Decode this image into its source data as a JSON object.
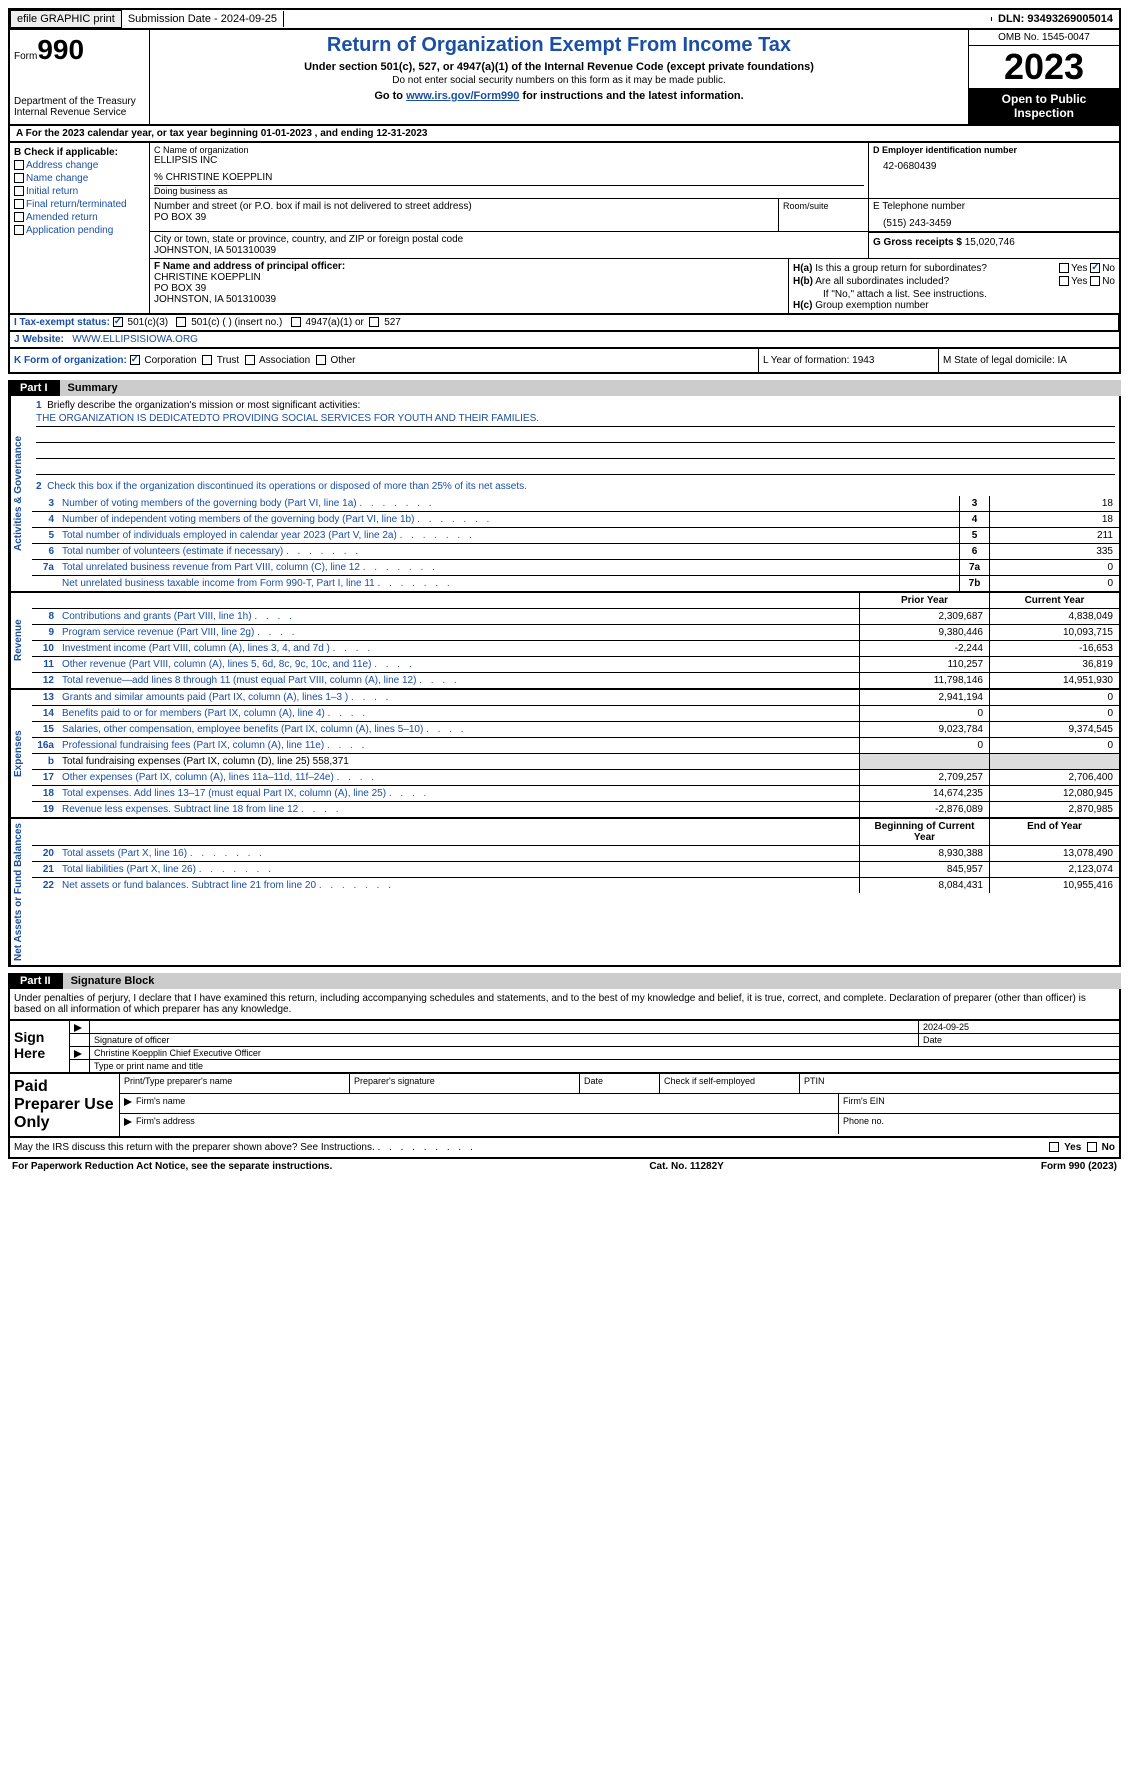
{
  "top": {
    "efile": "efile GRAPHIC print",
    "submission": "Submission Date - 2024-09-25",
    "dln": "DLN: 93493269005014"
  },
  "header": {
    "form": "Form",
    "formnum": "990",
    "dept": "Department of the Treasury Internal Revenue Service",
    "title": "Return of Organization Exempt From Income Tax",
    "subtitle": "Under section 501(c), 527, or 4947(a)(1) of the Internal Revenue Code (except private foundations)",
    "note1": "Do not enter social security numbers on this form as it may be made public.",
    "goto": "Go to www.irs.gov/Form990 for instructions and the latest information.",
    "goto_link": "www.irs.gov/Form990",
    "omb": "OMB No. 1545-0047",
    "year": "2023",
    "open": "Open to Public Inspection"
  },
  "lineA": "A For the 2023 calendar year, or tax year beginning 01-01-2023    , and ending 12-31-2023",
  "colB": {
    "label": "B Check if applicable:",
    "items": [
      "Address change",
      "Name change",
      "Initial return",
      "Final return/terminated",
      "Amended return",
      "Application pending"
    ]
  },
  "nameBlock": {
    "cLabel": "C Name of organization",
    "orgName": "ELLIPSIS INC",
    "careOf": "% CHRISTINE KOEPPLIN",
    "dbaLabel": "Doing business as",
    "addrLabel": "Number and street (or P.O. box if mail is not delivered to street address)",
    "addr": "PO BOX 39",
    "roomLabel": "Room/suite",
    "cityLabel": "City or town, state or province, country, and ZIP or foreign postal code",
    "city": "JOHNSTON, IA  501310039"
  },
  "d": {
    "label": "D Employer identification number",
    "val": "42-0680439"
  },
  "e": {
    "label": "E Telephone number",
    "val": "(515) 243-3459"
  },
  "g": {
    "label": "G Gross receipts $",
    "val": "15,020,746"
  },
  "f": {
    "label": "F  Name and address of principal officer:",
    "name": "CHRISTINE KOEPPLIN",
    "addr": "PO BOX 39",
    "city": "JOHNSTON, IA  501310039"
  },
  "h": {
    "a": "Is this a group return for subordinates?",
    "b": "Are all subordinates included?",
    "note": "If \"No,\" attach a list. See instructions.",
    "c": "Group exemption number",
    "yes": "Yes",
    "no": "No"
  },
  "i": {
    "label": "I   Tax-exempt status:",
    "opt1": "501(c)(3)",
    "opt2": "501(c) (  ) (insert no.)",
    "opt3": "4947(a)(1) or",
    "opt4": "527"
  },
  "j": {
    "label": "J   Website:",
    "val": "WWW.ELLIPSISIOWA.ORG"
  },
  "k": {
    "label": "K Form of organization:",
    "opts": [
      "Corporation",
      "Trust",
      "Association",
      "Other"
    ]
  },
  "l": {
    "text": "L Year of formation: 1943"
  },
  "m": {
    "text": "M State of legal domicile: IA"
  },
  "partI": {
    "label": "Part I",
    "title": "Summary"
  },
  "partII": {
    "label": "Part II",
    "title": "Signature Block"
  },
  "mission": {
    "q1": "Briefly describe the organization's mission or most significant activities:",
    "text": "THE ORGANIZATION IS DEDICATEDTO PROVIDING SOCIAL SERVICES FOR YOUTH AND THEIR FAMILIES.",
    "q2": "Check this box        if the organization discontinued its operations or disposed of more than 25% of its net assets."
  },
  "vtabs": {
    "gov": "Activities & Governance",
    "rev": "Revenue",
    "exp": "Expenses",
    "net": "Net Assets or Fund Balances"
  },
  "govLines": [
    {
      "n": "3",
      "d": "Number of voting members of the governing body (Part VI, line 1a)",
      "c": "3",
      "v": "18"
    },
    {
      "n": "4",
      "d": "Number of independent voting members of the governing body (Part VI, line 1b)",
      "c": "4",
      "v": "18"
    },
    {
      "n": "5",
      "d": "Total number of individuals employed in calendar year 2023 (Part V, line 2a)",
      "c": "5",
      "v": "211"
    },
    {
      "n": "6",
      "d": "Total number of volunteers (estimate if necessary)",
      "c": "6",
      "v": "335"
    },
    {
      "n": "7a",
      "d": "Total unrelated business revenue from Part VIII, column (C), line 12",
      "c": "7a",
      "v": "0"
    },
    {
      "n": "",
      "d": "Net unrelated business taxable income from Form 990-T, Part I, line 11",
      "c": "7b",
      "v": "0"
    }
  ],
  "revHeader": {
    "prior": "Prior Year",
    "curr": "Current Year"
  },
  "revLines": [
    {
      "n": "8",
      "d": "Contributions and grants (Part VIII, line 1h)",
      "p": "2,309,687",
      "c": "4,838,049"
    },
    {
      "n": "9",
      "d": "Program service revenue (Part VIII, line 2g)",
      "p": "9,380,446",
      "c": "10,093,715"
    },
    {
      "n": "10",
      "d": "Investment income (Part VIII, column (A), lines 3, 4, and 7d )",
      "p": "-2,244",
      "c": "-16,653"
    },
    {
      "n": "11",
      "d": "Other revenue (Part VIII, column (A), lines 5, 6d, 8c, 9c, 10c, and 11e)",
      "p": "110,257",
      "c": "36,819"
    },
    {
      "n": "12",
      "d": "Total revenue—add lines 8 through 11 (must equal Part VIII, column (A), line 12)",
      "p": "11,798,146",
      "c": "14,951,930"
    }
  ],
  "expLines": [
    {
      "n": "13",
      "d": "Grants and similar amounts paid (Part IX, column (A), lines 1–3 )",
      "p": "2,941,194",
      "c": "0"
    },
    {
      "n": "14",
      "d": "Benefits paid to or for members (Part IX, column (A), line 4)",
      "p": "0",
      "c": "0"
    },
    {
      "n": "15",
      "d": "Salaries, other compensation, employee benefits (Part IX, column (A), lines 5–10)",
      "p": "9,023,784",
      "c": "9,374,545"
    },
    {
      "n": "16a",
      "d": "Professional fundraising fees (Part IX, column (A), line 11e)",
      "p": "0",
      "c": "0"
    },
    {
      "n": "b",
      "d": "Total fundraising expenses (Part IX, column (D), line 25) 558,371",
      "grey": true
    },
    {
      "n": "17",
      "d": "Other expenses (Part IX, column (A), lines 11a–11d, 11f–24e)",
      "p": "2,709,257",
      "c": "2,706,400"
    },
    {
      "n": "18",
      "d": "Total expenses. Add lines 13–17 (must equal Part IX, column (A), line 25)",
      "p": "14,674,235",
      "c": "12,080,945"
    },
    {
      "n": "19",
      "d": "Revenue less expenses. Subtract line 18 from line 12",
      "p": "-2,876,089",
      "c": "2,870,985"
    }
  ],
  "netHeader": {
    "prior": "Beginning of Current Year",
    "curr": "End of Year"
  },
  "netLines": [
    {
      "n": "20",
      "d": "Total assets (Part X, line 16)",
      "p": "8,930,388",
      "c": "13,078,490"
    },
    {
      "n": "21",
      "d": "Total liabilities (Part X, line 26)",
      "p": "845,957",
      "c": "2,123,074"
    },
    {
      "n": "22",
      "d": "Net assets or fund balances. Subtract line 21 from line 20",
      "p": "8,084,431",
      "c": "10,955,416"
    }
  ],
  "sigDecl": "Under penalties of perjury, I declare that I have examined this return, including accompanying schedules and statements, and to the best of my knowledge and belief, it is true, correct, and complete. Declaration of preparer (other than officer) is based on all information of which preparer has any knowledge.",
  "sign": {
    "here": "Sign Here",
    "sigLabel": "Signature of officer",
    "dateLabel": "Date",
    "date": "2024-09-25",
    "officer": "Christine Koepplin  Chief Executive Officer",
    "typeLabel": "Type or print name and title"
  },
  "paid": {
    "label": "Paid Preparer Use Only",
    "printName": "Print/Type preparer's name",
    "sig": "Preparer's signature",
    "date": "Date",
    "selfEmp": "Check         if self-employed",
    "ptin": "PTIN",
    "firmName": "Firm's name",
    "firmEin": "Firm's EIN",
    "firmAddr": "Firm's address",
    "phone": "Phone no."
  },
  "discuss": "May the IRS discuss this return with the preparer shown above? See Instructions.",
  "footer": {
    "left": "For Paperwork Reduction Act Notice, see the separate instructions.",
    "mid": "Cat. No. 11282Y",
    "right": "Form 990 (2023)"
  }
}
